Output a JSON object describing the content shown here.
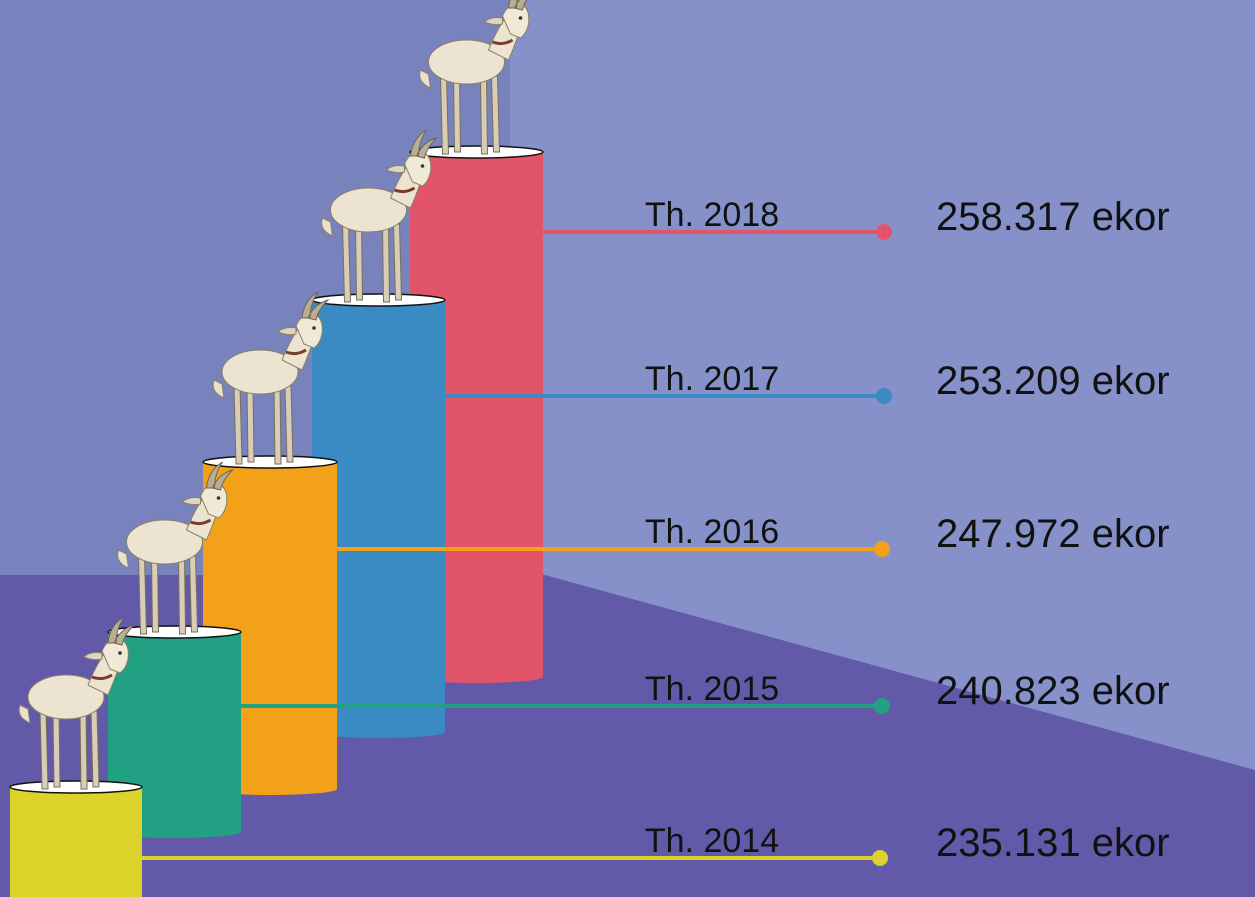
{
  "items": [
    {
      "year": "Th. 2018",
      "value": "258.317 ekor"
    },
    {
      "year": "Th. 2017",
      "value": "253.209 ekor"
    },
    {
      "year": "Th. 2016",
      "value": "247.972 ekor"
    },
    {
      "year": "Th. 2015",
      "value": "240.823 ekor"
    },
    {
      "year": "Th. 2014",
      "value": "235.131 ekor"
    }
  ]
}
